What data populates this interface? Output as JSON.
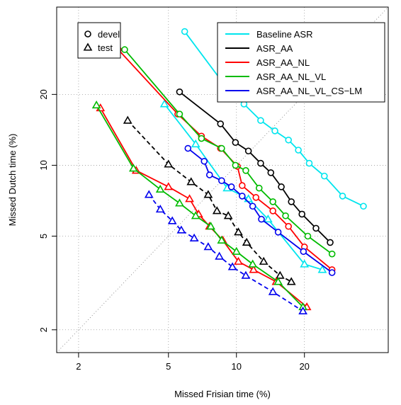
{
  "chart_data": {
    "type": "line",
    "title": "",
    "xlabel": "Missed Frisian time (%)",
    "ylabel": "Missed Dutch time (%)",
    "x_scale": "log",
    "y_scale": "log",
    "xlim": [
      1.6,
      47
    ],
    "ylim": [
      1.6,
      47
    ],
    "xticks": [
      2,
      5,
      10,
      20
    ],
    "yticks": [
      2,
      5,
      10,
      20
    ],
    "grid": true,
    "diagonal_reference": true,
    "marker_legend": {
      "position": "top-left",
      "entries": [
        {
          "label": "devel",
          "marker": "circle"
        },
        {
          "label": "test",
          "marker": "triangle"
        }
      ]
    },
    "legend_position": "top-right",
    "series": [
      {
        "name": "Baseline ASR",
        "color": "#00e5ee",
        "devel": [
          [
            5.9,
            37
          ],
          [
            9.0,
            21.5
          ],
          [
            10.8,
            18.2
          ],
          [
            12.8,
            15.5
          ],
          [
            14.8,
            14.0
          ],
          [
            17.0,
            12.8
          ],
          [
            18.8,
            11.6
          ],
          [
            21.0,
            10.2
          ],
          [
            24.5,
            9.0
          ],
          [
            29.5,
            7.4
          ],
          [
            36.5,
            6.7
          ]
        ],
        "test": [
          [
            4.8,
            18.2
          ],
          [
            6.6,
            12.3
          ],
          [
            9.1,
            8.0
          ],
          [
            11.3,
            7.2
          ],
          [
            13.8,
            5.9
          ],
          [
            20.0,
            3.8
          ],
          [
            24.0,
            3.6
          ]
        ]
      },
      {
        "name": "ASR_AA",
        "color": "#000000",
        "devel": [
          [
            5.6,
            20.5
          ],
          [
            8.5,
            15.0
          ],
          [
            9.9,
            12.5
          ],
          [
            11.3,
            11.5
          ],
          [
            12.8,
            10.2
          ],
          [
            14.2,
            9.3
          ],
          [
            15.8,
            8.1
          ],
          [
            17.5,
            7.0
          ],
          [
            19.5,
            6.2
          ],
          [
            22.5,
            5.4
          ],
          [
            26.0,
            4.7
          ]
        ],
        "test": [
          [
            3.3,
            15.5
          ],
          [
            5.0,
            10.1
          ],
          [
            6.3,
            8.5
          ],
          [
            7.5,
            7.5
          ],
          [
            8.2,
            6.4
          ],
          [
            9.2,
            6.1
          ],
          [
            10.2,
            5.2
          ],
          [
            11.1,
            4.7
          ],
          [
            13.2,
            3.9
          ],
          [
            15.6,
            3.4
          ],
          [
            17.5,
            3.2
          ]
        ]
      },
      {
        "name": "ASR_AA_NL",
        "color": "#ff0000",
        "devel": [
          [
            3.0,
            31
          ],
          [
            5.5,
            16.5
          ],
          [
            7.0,
            13.3
          ],
          [
            8.5,
            11.8
          ],
          [
            10.1,
            9.9
          ],
          [
            10.6,
            8.2
          ],
          [
            12.2,
            7.3
          ],
          [
            14.5,
            6.4
          ],
          [
            17.0,
            5.5
          ],
          [
            20.0,
            4.5
          ],
          [
            26.5,
            3.6
          ]
        ],
        "test": [
          [
            2.5,
            17.5
          ],
          [
            3.6,
            9.5
          ],
          [
            5.0,
            8.1
          ],
          [
            6.2,
            7.2
          ],
          [
            6.8,
            6.2
          ],
          [
            7.6,
            5.5
          ],
          [
            8.7,
            4.8
          ],
          [
            10.2,
            3.9
          ],
          [
            11.9,
            3.6
          ],
          [
            15.0,
            3.2
          ],
          [
            20.5,
            2.5
          ]
        ]
      },
      {
        "name": "ASR_AA_NL_VL",
        "color": "#00bb00",
        "devel": [
          [
            3.2,
            31
          ],
          [
            5.6,
            16.5
          ],
          [
            7.0,
            13.0
          ],
          [
            8.6,
            11.8
          ],
          [
            9.9,
            10.0
          ],
          [
            11.0,
            9.5
          ],
          [
            12.6,
            8.0
          ],
          [
            14.5,
            7.0
          ],
          [
            16.5,
            6.1
          ],
          [
            20.7,
            5.0
          ],
          [
            26.5,
            4.2
          ]
        ],
        "test": [
          [
            2.4,
            18.0
          ],
          [
            3.5,
            9.7
          ],
          [
            4.6,
            7.9
          ],
          [
            5.6,
            6.9
          ],
          [
            6.6,
            6.1
          ],
          [
            7.7,
            5.5
          ],
          [
            8.6,
            4.8
          ],
          [
            10.0,
            4.3
          ],
          [
            11.8,
            3.8
          ],
          [
            15.3,
            3.2
          ],
          [
            19.7,
            2.5
          ]
        ]
      },
      {
        "name": "ASR_AA_NL_VL_CS−LM",
        "color": "#0000ee",
        "devel": [
          [
            6.1,
            11.8
          ],
          [
            7.2,
            10.4
          ],
          [
            7.6,
            9.1
          ],
          [
            8.6,
            8.6
          ],
          [
            9.5,
            8.1
          ],
          [
            10.6,
            7.4
          ],
          [
            11.8,
            6.7
          ],
          [
            12.9,
            5.9
          ],
          [
            15.3,
            5.2
          ],
          [
            19.8,
            4.3
          ],
          [
            26.5,
            3.5
          ]
        ],
        "test": [
          [
            4.1,
            7.5
          ],
          [
            4.6,
            6.5
          ],
          [
            5.2,
            5.8
          ],
          [
            5.7,
            5.3
          ],
          [
            6.5,
            4.9
          ],
          [
            7.5,
            4.5
          ],
          [
            8.4,
            4.1
          ],
          [
            9.6,
            3.7
          ],
          [
            11.0,
            3.4
          ],
          [
            14.5,
            2.9
          ],
          [
            19.7,
            2.4
          ]
        ]
      }
    ]
  }
}
